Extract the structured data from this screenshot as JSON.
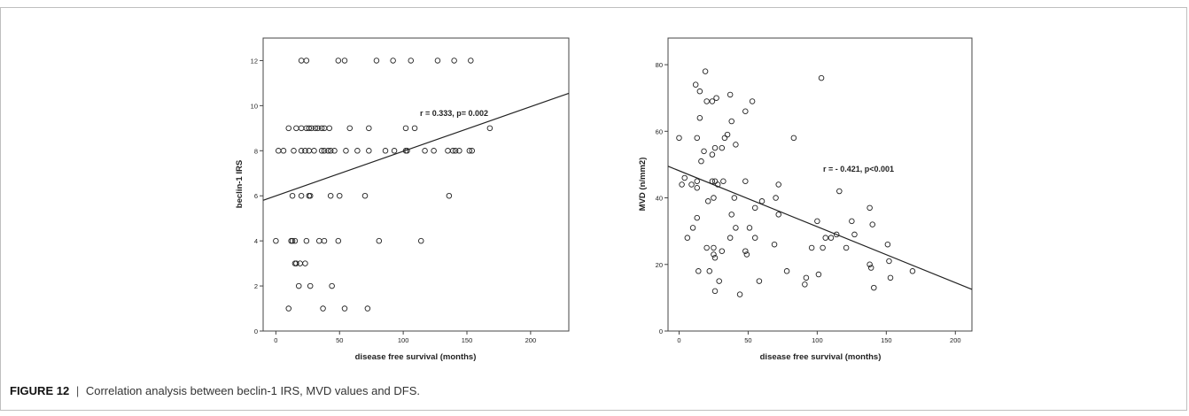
{
  "caption": {
    "label": "FIGURE 12",
    "separator": "|",
    "text": "Correlation analysis between beclin-1 IRS, MVD values and DFS."
  },
  "chart_data": [
    {
      "type": "scatter",
      "xlabel": "disease free survival (months)",
      "ylabel": "beclin-1 IRS",
      "xlim": [
        -10,
        230
      ],
      "ylim": [
        0,
        13
      ],
      "xticks": [
        0,
        50,
        100,
        150,
        200
      ],
      "yticks": [
        0,
        2,
        4,
        6,
        8,
        10,
        12
      ],
      "grid": false,
      "annotation": "r = 0.333, p= 0.002",
      "fit_line": {
        "x": [
          -10,
          230
        ],
        "y": [
          5.8,
          10.55
        ]
      },
      "points": [
        [
          20,
          12
        ],
        [
          24,
          12
        ],
        [
          49,
          12
        ],
        [
          54,
          12
        ],
        [
          79,
          12
        ],
        [
          92,
          12
        ],
        [
          106,
          12
        ],
        [
          127,
          12
        ],
        [
          140,
          12
        ],
        [
          153,
          12
        ],
        [
          10,
          9
        ],
        [
          16,
          9
        ],
        [
          20,
          9
        ],
        [
          24,
          9
        ],
        [
          26,
          9
        ],
        [
          28,
          9
        ],
        [
          31,
          9
        ],
        [
          33,
          9
        ],
        [
          36,
          9
        ],
        [
          38,
          9
        ],
        [
          42,
          9
        ],
        [
          58,
          9
        ],
        [
          73,
          9
        ],
        [
          102,
          9
        ],
        [
          109,
          9
        ],
        [
          168,
          9
        ],
        [
          2,
          8
        ],
        [
          6,
          8
        ],
        [
          14,
          8
        ],
        [
          20,
          8
        ],
        [
          23,
          8
        ],
        [
          26,
          8
        ],
        [
          30,
          8
        ],
        [
          36,
          8
        ],
        [
          38,
          8
        ],
        [
          41,
          8
        ],
        [
          43,
          8
        ],
        [
          46,
          8
        ],
        [
          55,
          8
        ],
        [
          64,
          8
        ],
        [
          73,
          8
        ],
        [
          86,
          8
        ],
        [
          93,
          8
        ],
        [
          102,
          8
        ],
        [
          103,
          8
        ],
        [
          117,
          8
        ],
        [
          124,
          8
        ],
        [
          135,
          8
        ],
        [
          139,
          8
        ],
        [
          141,
          8
        ],
        [
          144,
          8
        ],
        [
          152,
          8
        ],
        [
          154,
          8
        ],
        [
          13,
          6
        ],
        [
          20,
          6
        ],
        [
          26,
          6
        ],
        [
          27,
          6
        ],
        [
          43,
          6
        ],
        [
          50,
          6
        ],
        [
          70,
          6
        ],
        [
          136,
          6
        ],
        [
          0,
          4
        ],
        [
          12,
          4
        ],
        [
          13,
          4
        ],
        [
          15,
          4
        ],
        [
          24,
          4
        ],
        [
          34,
          4
        ],
        [
          38,
          4
        ],
        [
          49,
          4
        ],
        [
          81,
          4
        ],
        [
          114,
          4
        ],
        [
          15,
          3
        ],
        [
          16,
          3
        ],
        [
          19,
          3
        ],
        [
          23,
          3
        ],
        [
          18,
          2
        ],
        [
          27,
          2
        ],
        [
          44,
          2
        ],
        [
          10,
          1
        ],
        [
          37,
          1
        ],
        [
          54,
          1
        ],
        [
          72,
          1
        ]
      ]
    },
    {
      "type": "scatter",
      "xlabel": "disease free survival (months)",
      "ylabel": "MVD (n/mm2)",
      "xlim": [
        -8,
        212
      ],
      "ylim": [
        0,
        88
      ],
      "xticks": [
        0,
        50,
        100,
        150,
        200
      ],
      "yticks": [
        0,
        20,
        40,
        60,
        80
      ],
      "grid": false,
      "annotation": "r = - 0.421, p<0.001",
      "fit_line": {
        "x": [
          -8,
          212
        ],
        "y": [
          49.5,
          12.5
        ]
      },
      "points": [
        [
          19,
          78
        ],
        [
          103,
          76
        ],
        [
          12,
          74
        ],
        [
          15,
          72
        ],
        [
          20,
          69
        ],
        [
          24,
          69
        ],
        [
          27,
          70
        ],
        [
          37,
          71
        ],
        [
          53,
          69
        ],
        [
          48,
          66
        ],
        [
          15,
          64
        ],
        [
          38,
          63
        ],
        [
          0,
          58
        ],
        [
          13,
          58
        ],
        [
          33,
          58
        ],
        [
          35,
          59
        ],
        [
          31,
          55
        ],
        [
          41,
          56
        ],
        [
          83,
          58
        ],
        [
          18,
          54
        ],
        [
          26,
          55
        ],
        [
          24,
          53
        ],
        [
          16,
          51
        ],
        [
          4,
          46
        ],
        [
          9,
          44
        ],
        [
          13,
          45
        ],
        [
          24,
          45
        ],
        [
          26,
          45
        ],
        [
          32,
          45
        ],
        [
          48,
          45
        ],
        [
          13,
          43
        ],
        [
          2,
          44
        ],
        [
          28,
          44
        ],
        [
          40,
          40
        ],
        [
          60,
          39
        ],
        [
          70,
          40
        ],
        [
          72,
          44
        ],
        [
          116,
          42
        ],
        [
          138,
          37
        ],
        [
          21,
          39
        ],
        [
          25,
          40
        ],
        [
          38,
          35
        ],
        [
          55,
          37
        ],
        [
          72,
          35
        ],
        [
          100,
          33
        ],
        [
          125,
          33
        ],
        [
          140,
          32
        ],
        [
          6,
          28
        ],
        [
          10,
          31
        ],
        [
          13,
          34
        ],
        [
          37,
          28
        ],
        [
          55,
          28
        ],
        [
          69,
          26
        ],
        [
          106,
          28
        ],
        [
          110,
          28
        ],
        [
          114,
          29
        ],
        [
          127,
          29
        ],
        [
          20,
          25
        ],
        [
          25,
          25
        ],
        [
          41,
          31
        ],
        [
          51,
          31
        ],
        [
          96,
          25
        ],
        [
          104,
          25
        ],
        [
          121,
          25
        ],
        [
          138,
          20
        ],
        [
          151,
          26
        ],
        [
          152,
          21
        ],
        [
          14,
          18
        ],
        [
          22,
          18
        ],
        [
          25,
          23
        ],
        [
          26,
          22
        ],
        [
          31,
          24
        ],
        [
          48,
          24
        ],
        [
          49,
          23
        ],
        [
          78,
          18
        ],
        [
          139,
          19
        ],
        [
          169,
          18
        ],
        [
          26,
          12
        ],
        [
          29,
          15
        ],
        [
          44,
          11
        ],
        [
          58,
          15
        ],
        [
          91,
          14
        ],
        [
          92,
          16
        ],
        [
          101,
          17
        ],
        [
          141,
          13
        ],
        [
          153,
          16
        ]
      ]
    }
  ]
}
